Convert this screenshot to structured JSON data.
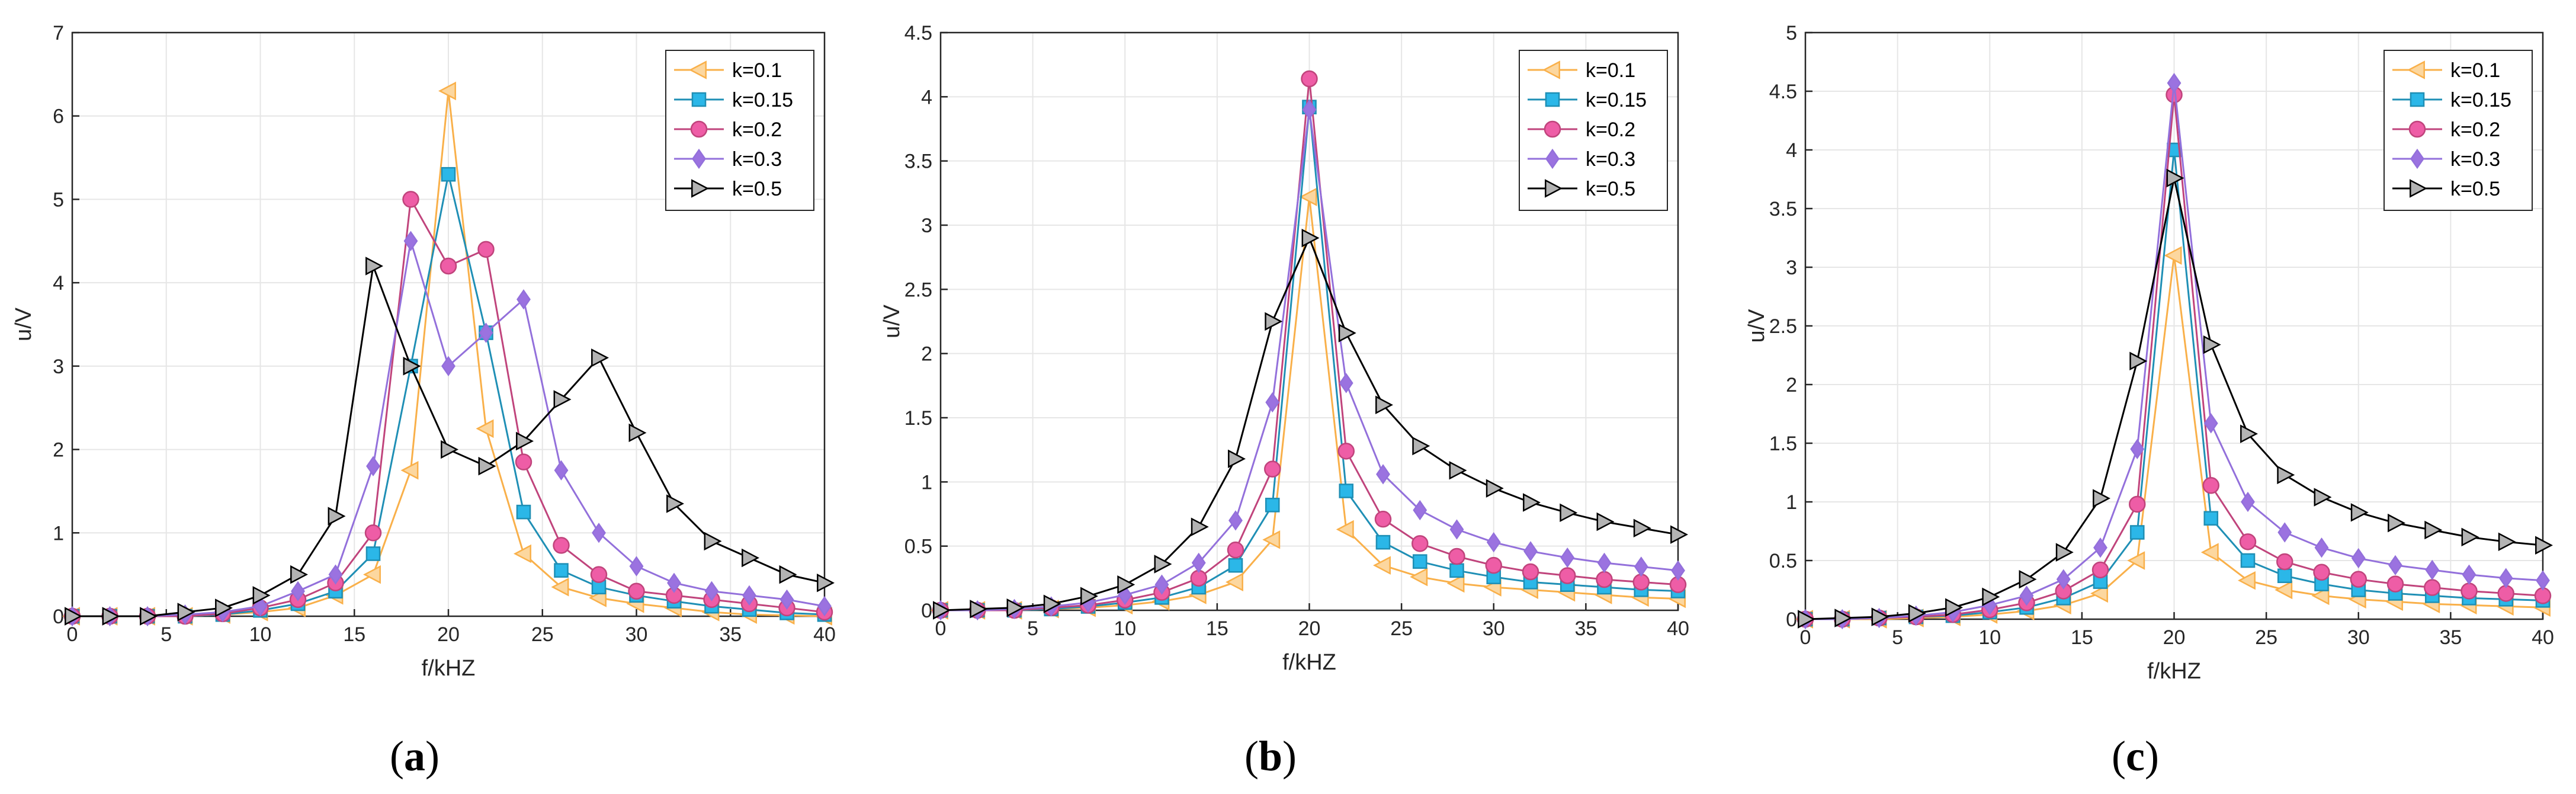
{
  "figure": {
    "panels": [
      "a",
      "b",
      "c"
    ]
  },
  "styles": {
    "series": [
      {
        "color": "#F9B04A",
        "marker": "triangle-left",
        "fill": "#FCD79F"
      },
      {
        "color": "#1F8FB5",
        "marker": "square",
        "fill": "#2BB7E8"
      },
      {
        "color": "#C0447C",
        "marker": "circle",
        "fill": "#EE5DA6"
      },
      {
        "color": "#9370DB",
        "marker": "diamond",
        "fill": "#9B72E0"
      },
      {
        "color": "#000000",
        "marker": "triangle-right",
        "fill": "#B3B3B3"
      }
    ],
    "grid_color": "#E6E6E6",
    "axis_color": "#262626"
  },
  "chart_data": [
    {
      "type": "line",
      "panel": "a",
      "caption_open": "(",
      "caption_letter": "a",
      "caption_close": ")",
      "xlabel": "f/kHZ",
      "ylabel": "u/V",
      "xlim": [
        0,
        40
      ],
      "ylim": [
        0,
        7
      ],
      "xticks": [
        0,
        5,
        10,
        15,
        20,
        25,
        30,
        35,
        40
      ],
      "yticks": [
        0,
        1,
        2,
        3,
        4,
        5,
        6,
        7
      ],
      "grid": true,
      "legend": "top-right",
      "x": [
        0,
        2,
        4,
        6,
        8,
        10,
        12,
        14,
        16,
        18,
        20,
        22,
        24,
        26,
        28,
        30,
        32,
        34,
        36,
        38,
        40
      ],
      "series": [
        {
          "name": "k=0.1",
          "values": [
            0,
            0,
            0,
            0,
            0.02,
            0.05,
            0.1,
            0.25,
            0.5,
            1.75,
            6.3,
            2.25,
            0.75,
            0.35,
            0.22,
            0.15,
            0.1,
            0.05,
            0.02,
            0.01,
            0
          ]
        },
        {
          "name": "k=0.15",
          "values": [
            0,
            0,
            0,
            0,
            0.02,
            0.07,
            0.15,
            0.3,
            0.75,
            3.0,
            5.3,
            3.4,
            1.25,
            0.55,
            0.35,
            0.25,
            0.18,
            0.12,
            0.08,
            0.04,
            0.02
          ]
        },
        {
          "name": "k=0.2",
          "values": [
            0,
            0,
            0,
            0,
            0.03,
            0.1,
            0.2,
            0.4,
            1.0,
            5.0,
            4.2,
            4.4,
            1.85,
            0.85,
            0.5,
            0.3,
            0.25,
            0.2,
            0.15,
            0.1,
            0.05
          ]
        },
        {
          "name": "k=0.3",
          "values": [
            0,
            0,
            0,
            0.02,
            0.05,
            0.12,
            0.3,
            0.5,
            1.8,
            4.5,
            3.0,
            3.4,
            3.8,
            1.75,
            1.0,
            0.6,
            0.4,
            0.3,
            0.25,
            0.2,
            0.12
          ]
        },
        {
          "name": "k=0.5",
          "values": [
            0,
            0,
            0,
            0.05,
            0.1,
            0.25,
            0.5,
            1.2,
            4.2,
            3.0,
            2.0,
            1.8,
            2.1,
            2.6,
            3.1,
            2.2,
            1.35,
            0.9,
            0.7,
            0.5,
            0.4
          ]
        }
      ]
    },
    {
      "type": "line",
      "panel": "b",
      "caption_open": "(",
      "caption_letter": "b",
      "caption_close": ")",
      "xlabel": "f/kHZ",
      "ylabel": "u/V",
      "xlim": [
        0,
        40
      ],
      "ylim": [
        0,
        4.5
      ],
      "xticks": [
        0,
        5,
        10,
        15,
        20,
        25,
        30,
        35,
        40
      ],
      "yticks": [
        0,
        0.5,
        1,
        1.5,
        2,
        2.5,
        3,
        3.5,
        4,
        4.5
      ],
      "grid": true,
      "legend": "top-right",
      "x": [
        0,
        2,
        4,
        6,
        8,
        10,
        12,
        14,
        16,
        18,
        20,
        22,
        24,
        26,
        28,
        30,
        32,
        34,
        36,
        38,
        40
      ],
      "series": [
        {
          "name": "k=0.1",
          "values": [
            0,
            0,
            0,
            0.01,
            0.02,
            0.04,
            0.07,
            0.12,
            0.22,
            0.55,
            3.22,
            0.63,
            0.35,
            0.26,
            0.21,
            0.18,
            0.16,
            0.14,
            0.12,
            0.1,
            0.09
          ]
        },
        {
          "name": "k=0.15",
          "values": [
            0,
            0,
            0,
            0.01,
            0.03,
            0.06,
            0.1,
            0.18,
            0.35,
            0.82,
            3.92,
            0.93,
            0.53,
            0.38,
            0.31,
            0.26,
            0.22,
            0.2,
            0.18,
            0.16,
            0.15
          ]
        },
        {
          "name": "k=0.2",
          "values": [
            0,
            0,
            0,
            0.02,
            0.04,
            0.08,
            0.14,
            0.25,
            0.47,
            1.1,
            4.14,
            1.24,
            0.71,
            0.52,
            0.42,
            0.35,
            0.3,
            0.27,
            0.24,
            0.22,
            0.2
          ]
        },
        {
          "name": "k=0.3",
          "values": [
            0,
            0,
            0.01,
            0.03,
            0.06,
            0.12,
            0.2,
            0.37,
            0.7,
            1.62,
            3.9,
            1.77,
            1.06,
            0.78,
            0.63,
            0.53,
            0.46,
            0.41,
            0.37,
            0.34,
            0.31
          ]
        },
        {
          "name": "k=0.5",
          "values": [
            0,
            0.01,
            0.02,
            0.05,
            0.11,
            0.2,
            0.36,
            0.65,
            1.18,
            2.25,
            2.9,
            2.16,
            1.6,
            1.28,
            1.09,
            0.95,
            0.84,
            0.76,
            0.69,
            0.64,
            0.59
          ]
        }
      ]
    },
    {
      "type": "line",
      "panel": "c",
      "caption_open": "(",
      "caption_letter": "c",
      "caption_close": ")",
      "xlabel": "f/kHZ",
      "ylabel": "u/V",
      "xlim": [
        0,
        40
      ],
      "ylim": [
        0,
        5
      ],
      "xticks": [
        0,
        5,
        10,
        15,
        20,
        25,
        30,
        35,
        40
      ],
      "yticks": [
        0,
        0.5,
        1,
        1.5,
        2,
        2.5,
        3,
        3.5,
        4,
        4.5,
        5
      ],
      "grid": true,
      "legend": "top-right",
      "x": [
        0,
        2,
        4,
        6,
        8,
        10,
        12,
        14,
        16,
        18,
        20,
        22,
        24,
        26,
        28,
        30,
        32,
        34,
        36,
        38,
        40
      ],
      "series": [
        {
          "name": "k=0.1",
          "values": [
            0,
            0,
            0,
            0.01,
            0.02,
            0.04,
            0.07,
            0.12,
            0.22,
            0.5,
            3.1,
            0.57,
            0.33,
            0.25,
            0.2,
            0.17,
            0.15,
            0.13,
            0.12,
            0.11,
            0.1
          ]
        },
        {
          "name": "k=0.15",
          "values": [
            0,
            0,
            0.01,
            0.02,
            0.03,
            0.06,
            0.1,
            0.18,
            0.32,
            0.74,
            4.0,
            0.86,
            0.5,
            0.37,
            0.3,
            0.25,
            0.22,
            0.2,
            0.18,
            0.17,
            0.16
          ]
        },
        {
          "name": "k=0.2",
          "values": [
            0,
            0,
            0.01,
            0.02,
            0.04,
            0.08,
            0.14,
            0.24,
            0.42,
            0.98,
            4.47,
            1.14,
            0.66,
            0.49,
            0.4,
            0.34,
            0.3,
            0.27,
            0.24,
            0.22,
            0.2
          ]
        },
        {
          "name": "k=0.3",
          "values": [
            0,
            0,
            0.01,
            0.03,
            0.06,
            0.12,
            0.2,
            0.34,
            0.61,
            1.45,
            4.57,
            1.67,
            1.0,
            0.74,
            0.61,
            0.52,
            0.46,
            0.42,
            0.38,
            0.35,
            0.33
          ]
        },
        {
          "name": "k=0.5",
          "values": [
            0,
            0.01,
            0.02,
            0.05,
            0.1,
            0.19,
            0.34,
            0.57,
            1.03,
            2.2,
            3.76,
            2.34,
            1.58,
            1.23,
            1.04,
            0.91,
            0.82,
            0.76,
            0.7,
            0.66,
            0.63
          ]
        }
      ]
    }
  ]
}
